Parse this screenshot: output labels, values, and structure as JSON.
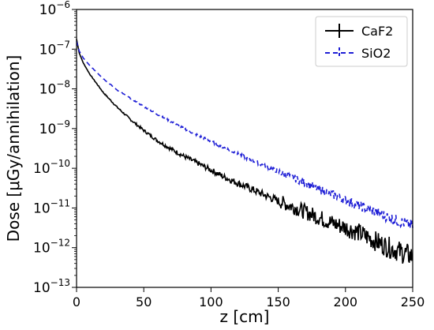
{
  "chart_data": {
    "type": "line",
    "title": "",
    "xlabel": "z [cm]",
    "ylabel": "Dose [μGy/annihilation]",
    "xlim": [
      0,
      250
    ],
    "ylim": [
      1e-13,
      1e-06
    ],
    "yscale": "log",
    "grid": false,
    "legend_position": "top-right",
    "x_ticks": [
      {
        "value": 0,
        "label": "0"
      },
      {
        "value": 50,
        "label": "50"
      },
      {
        "value": 100,
        "label": "100"
      },
      {
        "value": 150,
        "label": "150"
      },
      {
        "value": 200,
        "label": "200"
      },
      {
        "value": 250,
        "label": "250"
      }
    ],
    "y_ticks": [
      {
        "exp": -13,
        "base": "10",
        "sup": "−13"
      },
      {
        "exp": -12,
        "base": "10",
        "sup": "−12"
      },
      {
        "exp": -11,
        "base": "10",
        "sup": "−11"
      },
      {
        "exp": -10,
        "base": "10",
        "sup": "−10"
      },
      {
        "exp": -9,
        "base": "10",
        "sup": "−9"
      },
      {
        "exp": -8,
        "base": "10",
        "sup": "−8"
      },
      {
        "exp": -7,
        "base": "10",
        "sup": "−7"
      },
      {
        "exp": -6,
        "base": "10",
        "sup": "−6"
      }
    ],
    "series": [
      {
        "name": "CaF2",
        "color": "#000000",
        "style": "solid",
        "x": [
          0,
          2,
          5,
          10,
          20,
          30,
          40,
          50,
          60,
          70,
          80,
          90,
          100,
          110,
          120,
          130,
          140,
          150,
          160,
          170,
          180,
          190,
          200,
          210,
          220,
          230,
          240,
          250
        ],
        "y": [
          1.8e-07,
          8e-08,
          4.5e-08,
          2.3e-08,
          8e-09,
          3.5e-09,
          1.7e-09,
          9e-10,
          5e-10,
          3.1e-10,
          2e-10,
          1.35e-10,
          9e-11,
          6e-11,
          4.2e-11,
          3e-11,
          2.1e-11,
          1.5e-11,
          1.1e-11,
          8e-12,
          5.8e-12,
          4.2e-12,
          3.2e-12,
          2.4e-12,
          1.6e-12,
          1.1e-12,
          8e-13,
          6e-13
        ]
      },
      {
        "name": "SiO2",
        "color": "#1f1fd6",
        "style": "dashed",
        "x": [
          0,
          2,
          5,
          10,
          20,
          30,
          40,
          50,
          60,
          70,
          80,
          90,
          100,
          110,
          120,
          130,
          140,
          150,
          160,
          170,
          180,
          190,
          200,
          210,
          220,
          230,
          240,
          250
        ],
        "y": [
          1.6e-07,
          9e-08,
          6e-08,
          3.8e-08,
          1.8e-08,
          9.5e-09,
          5.8e-09,
          3.6e-09,
          2.3e-09,
          1.5e-09,
          1e-09,
          6.8e-10,
          4.8e-10,
          3.3e-10,
          2.3e-10,
          1.6e-10,
          1.15e-10,
          8.3e-11,
          6e-11,
          4.3e-11,
          3e-11,
          2.2e-11,
          1.6e-11,
          1.15e-11,
          8.5e-12,
          6.2e-12,
          4.6e-12,
          3.5e-12
        ]
      }
    ]
  }
}
